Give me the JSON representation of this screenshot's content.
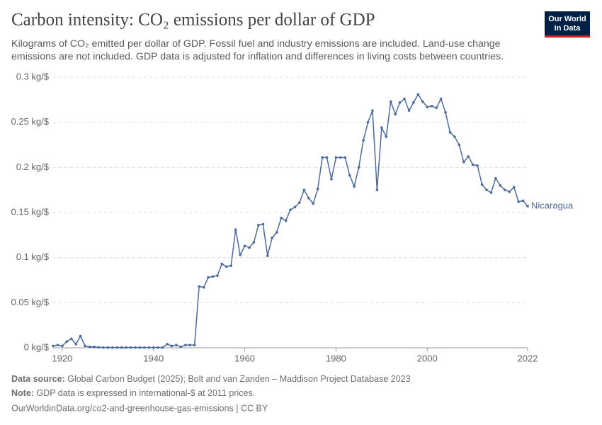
{
  "chart_data": {
    "type": "line",
    "title": "Carbon intensity: CO₂ emissions per dollar of GDP",
    "subtitle": [
      "Kilograms of CO₂ emitted per dollar of GDP. Fossil fuel and industry emissions are included. Land-use change",
      "emissions are not included. GDP data is adjusted for inflation and differences in living costs between countries."
    ],
    "logo": [
      "Our World",
      "in Data"
    ],
    "source_label": "Data source:",
    "source_text": "Global Carbon Budget (2025); Bolt and van Zanden – Maddison Project Database 2023",
    "note_label": "Note:",
    "note_text": "GDP data is expressed in international-$ at 2011 prices.",
    "url": "OurWorldinData.org/co2-and-greenhouse-gas-emissions | CC BY",
    "x": [
      1918,
      1919,
      1920,
      1921,
      1922,
      1923,
      1924,
      1925,
      1926,
      1927,
      1928,
      1929,
      1930,
      1931,
      1932,
      1933,
      1934,
      1935,
      1936,
      1937,
      1938,
      1939,
      1940,
      1941,
      1942,
      1943,
      1944,
      1945,
      1946,
      1947,
      1948,
      1949,
      1950,
      1951,
      1952,
      1953,
      1954,
      1955,
      1956,
      1957,
      1958,
      1959,
      1960,
      1961,
      1962,
      1963,
      1964,
      1965,
      1966,
      1967,
      1968,
      1969,
      1970,
      1971,
      1972,
      1973,
      1974,
      1975,
      1976,
      1977,
      1978,
      1979,
      1980,
      1981,
      1982,
      1983,
      1984,
      1985,
      1986,
      1987,
      1988,
      1989,
      1990,
      1991,
      1992,
      1993,
      1994,
      1995,
      1996,
      1997,
      1998,
      1999,
      2000,
      2001,
      2002,
      2003,
      2004,
      2005,
      2006,
      2007,
      2008,
      2009,
      2010,
      2011,
      2012,
      2013,
      2014,
      2015,
      2016,
      2017,
      2018,
      2019,
      2020,
      2021,
      2022
    ],
    "series": [
      {
        "name": "Nicaragua",
        "color": "#4c6a9c",
        "values": [
          0.002,
          0.003,
          0.002,
          0.007,
          0.01,
          0.004,
          0.013,
          0.002,
          0.001,
          0.001,
          0.0005,
          0.0003,
          0.0003,
          0.0003,
          0.0003,
          0.0003,
          0.0003,
          0.0003,
          0.0003,
          0.0003,
          0.0003,
          0.0003,
          0.0003,
          0.0003,
          0.0003,
          0.004,
          0.002,
          0.003,
          0.001,
          0.003,
          0.003,
          0.003,
          0.068,
          0.067,
          0.078,
          0.079,
          0.08,
          0.093,
          0.09,
          0.091,
          0.131,
          0.103,
          0.113,
          0.111,
          0.117,
          0.136,
          0.137,
          0.102,
          0.122,
          0.128,
          0.144,
          0.141,
          0.153,
          0.156,
          0.161,
          0.175,
          0.166,
          0.16,
          0.176,
          0.211,
          0.211,
          0.187,
          0.211,
          0.211,
          0.211,
          0.191,
          0.179,
          0.2,
          0.23,
          0.25,
          0.263,
          0.175,
          0.244,
          0.234,
          0.273,
          0.259,
          0.272,
          0.276,
          0.263,
          0.272,
          0.281,
          0.273,
          0.267,
          0.268,
          0.266,
          0.276,
          0.261,
          0.239,
          0.234,
          0.225,
          0.206,
          0.212,
          0.203,
          0.202,
          0.181,
          0.175,
          0.172,
          0.188,
          0.18,
          0.175,
          0.173,
          0.178,
          0.162,
          0.163,
          0.157
        ]
      }
    ],
    "xlim": [
      1918,
      2022
    ],
    "xticks": [
      1920,
      1940,
      1960,
      1980,
      2000,
      2022
    ],
    "ylim": [
      0,
      0.3
    ],
    "yticks": [
      {
        "value": 0,
        "label": "0 kg/$"
      },
      {
        "value": 0.05,
        "label": "0.05 kg/$"
      },
      {
        "value": 0.1,
        "label": "0.1 kg/$"
      },
      {
        "value": 0.15,
        "label": "0.15 kg/$"
      },
      {
        "value": 0.2,
        "label": "0.2 kg/$"
      },
      {
        "value": 0.25,
        "label": "0.25 kg/$"
      },
      {
        "value": 0.3,
        "label": "0.3 kg/$"
      }
    ],
    "grid": true
  }
}
